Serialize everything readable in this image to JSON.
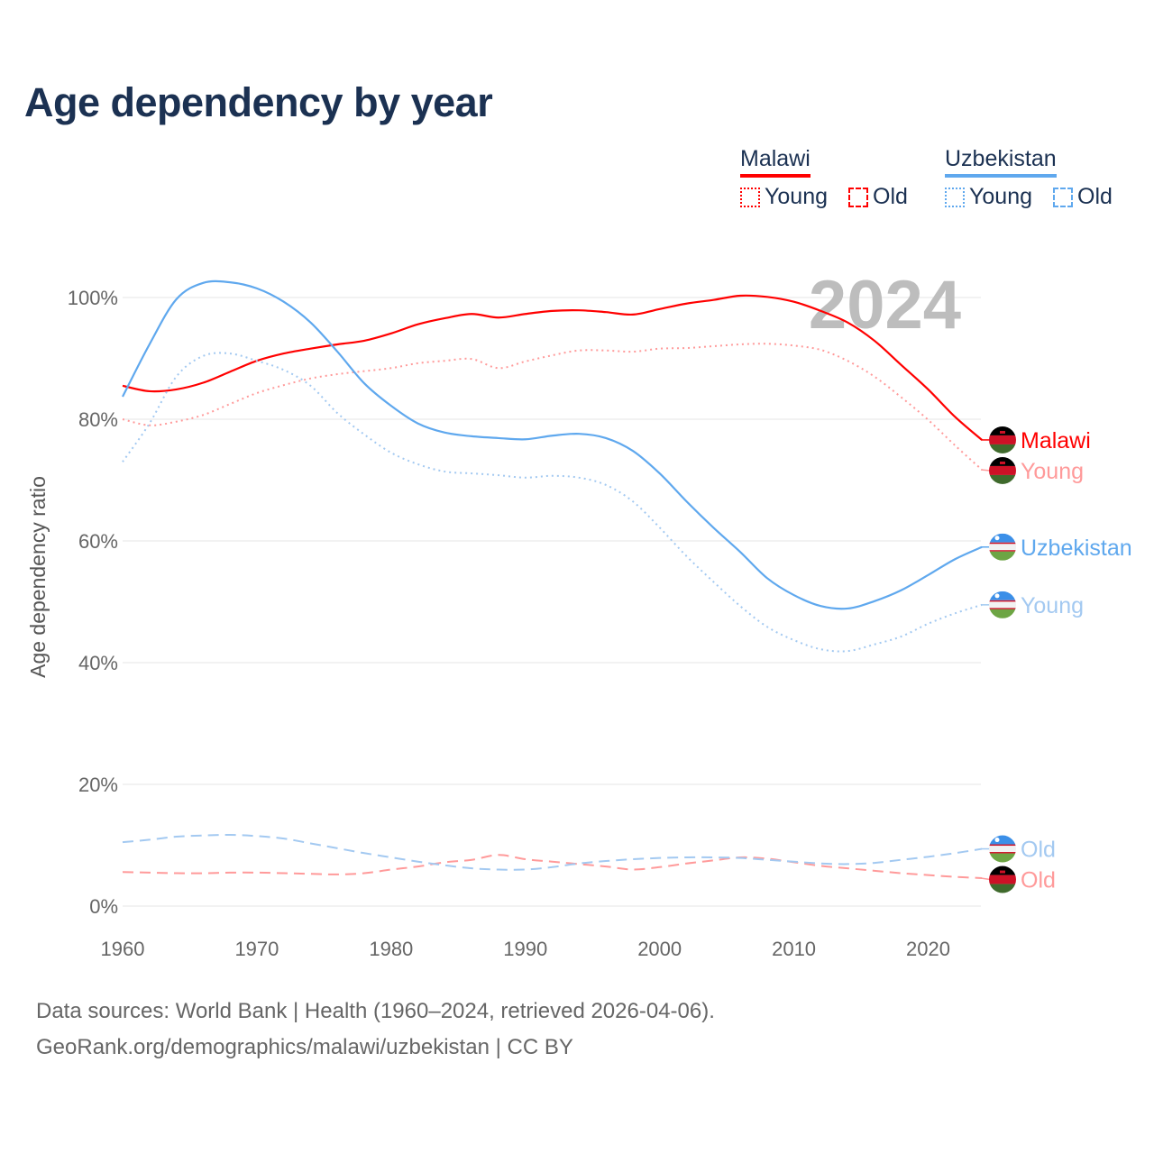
{
  "title": "Age dependency by year",
  "legend": {
    "groups": [
      {
        "country": "Malawi",
        "color": "#ff0000",
        "light": "#ff9a9a",
        "items": [
          {
            "label": "Young",
            "style": "dotted"
          },
          {
            "label": "Old",
            "style": "dashed"
          }
        ]
      },
      {
        "country": "Uzbekistan",
        "color": "#5fa8ee",
        "light": "#a3c9f1",
        "items": [
          {
            "label": "Young",
            "style": "dotted"
          },
          {
            "label": "Old",
            "style": "dashed"
          }
        ]
      }
    ]
  },
  "year_overlay": "2024",
  "sources": [
    "Data sources: World Bank | Health (1960–2024, retrieved 2026-04-06).",
    "GeoRank.org/demographics/malawi/uzbekistan | CC BY"
  ],
  "chart_data": {
    "type": "line",
    "title": "Age dependency by year",
    "xlabel": "",
    "ylabel": "Age dependency ratio",
    "xlim": [
      1960,
      2024
    ],
    "ylim": [
      0,
      105
    ],
    "xticks": [
      1960,
      1970,
      1980,
      1990,
      2000,
      2010,
      2020
    ],
    "yticks": [
      {
        "v": 0,
        "label": "0%"
      },
      {
        "v": 20,
        "label": "20%"
      },
      {
        "v": 40,
        "label": "40%"
      },
      {
        "v": 60,
        "label": "60%"
      },
      {
        "v": 80,
        "label": "80%"
      },
      {
        "v": 100,
        "label": "100%"
      }
    ],
    "grid": true,
    "x": [
      1960,
      1962,
      1964,
      1966,
      1968,
      1970,
      1972,
      1974,
      1976,
      1978,
      1980,
      1982,
      1984,
      1986,
      1988,
      1990,
      1992,
      1994,
      1996,
      1998,
      2000,
      2002,
      2004,
      2006,
      2008,
      2010,
      2012,
      2014,
      2016,
      2018,
      2020,
      2022,
      2024
    ],
    "series": [
      {
        "name": "Malawi",
        "end_label": "Malawi",
        "color": "#ff0000",
        "dash": "",
        "flag": "malawi",
        "values": [
          85.5,
          84.6,
          84.9,
          86,
          87.8,
          89.6,
          90.8,
          91.6,
          92.3,
          92.9,
          94.1,
          95.6,
          96.6,
          97.3,
          96.7,
          97.3,
          97.8,
          97.9,
          97.6,
          97.2,
          98.1,
          99,
          99.6,
          100.3,
          100.1,
          99.3,
          97.8,
          95.9,
          92.9,
          88.9,
          84.9,
          80.4,
          76.6
        ]
      },
      {
        "name": "Malawi Young",
        "end_label": "Young",
        "color": "#ff9a9a",
        "dash": "2 4",
        "flag": "malawi",
        "values": [
          80,
          79,
          79.6,
          80.7,
          82.5,
          84.3,
          85.6,
          86.7,
          87.4,
          87.9,
          88.4,
          89.2,
          89.6,
          89.9,
          88.4,
          89.5,
          90.5,
          91.3,
          91.3,
          91.1,
          91.6,
          91.7,
          92,
          92.3,
          92.4,
          92.1,
          91.4,
          89.6,
          87,
          83.6,
          79.9,
          75.7,
          71.7
        ]
      },
      {
        "name": "Malawi Old",
        "end_label": "Old",
        "color": "#ff9a9a",
        "dash": "12 7",
        "flag": "malawi",
        "values": [
          5.6,
          5.5,
          5.4,
          5.4,
          5.5,
          5.5,
          5.4,
          5.3,
          5.2,
          5.4,
          6.0,
          6.5,
          7.2,
          7.6,
          8.4,
          7.7,
          7.3,
          6.9,
          6.5,
          6.0,
          6.4,
          7.0,
          7.5,
          8.0,
          7.8,
          7.2,
          6.6,
          6.2,
          5.8,
          5.4,
          5.1,
          4.8,
          4.6
        ]
      },
      {
        "name": "Uzbekistan",
        "end_label": "Uzbekistan",
        "color": "#5fa8ee",
        "dash": "",
        "flag": "uzbekistan",
        "values": [
          83.7,
          92.3,
          99.7,
          102.4,
          102.5,
          101.5,
          99.3,
          95.9,
          91.1,
          85.9,
          82.2,
          79.3,
          77.8,
          77.2,
          76.9,
          76.7,
          77.3,
          77.6,
          76.9,
          74.8,
          71.1,
          66.5,
          62.2,
          58.2,
          53.9,
          51.1,
          49.3,
          48.9,
          50.1,
          51.9,
          54.4,
          57,
          59
        ]
      },
      {
        "name": "Uzbekistan Young",
        "end_label": "Young",
        "color": "#a3c9f1",
        "dash": "2 4",
        "flag": "uzbekistan",
        "values": [
          73,
          79.3,
          87,
          90.4,
          90.8,
          89.6,
          88.1,
          85.5,
          81,
          77.5,
          74.5,
          72.6,
          71.4,
          71.1,
          70.8,
          70.4,
          70.7,
          70.4,
          69.2,
          66.5,
          62.2,
          57.5,
          53.3,
          49.3,
          45.9,
          43.7,
          42.2,
          41.9,
          43,
          44.3,
          46.4,
          48.1,
          49.5
        ]
      },
      {
        "name": "Uzbekistan Old",
        "end_label": "Old",
        "color": "#a3c9f1",
        "dash": "12 7",
        "flag": "uzbekistan",
        "values": [
          10.5,
          10.9,
          11.4,
          11.6,
          11.7,
          11.5,
          11.1,
          10.3,
          9.5,
          8.7,
          8.0,
          7.3,
          6.7,
          6.2,
          6.0,
          6.0,
          6.4,
          7.0,
          7.4,
          7.7,
          7.9,
          8.0,
          8.0,
          7.9,
          7.6,
          7.3,
          7.0,
          6.9,
          7.1,
          7.6,
          8.1,
          8.7,
          9.4
        ]
      }
    ]
  }
}
